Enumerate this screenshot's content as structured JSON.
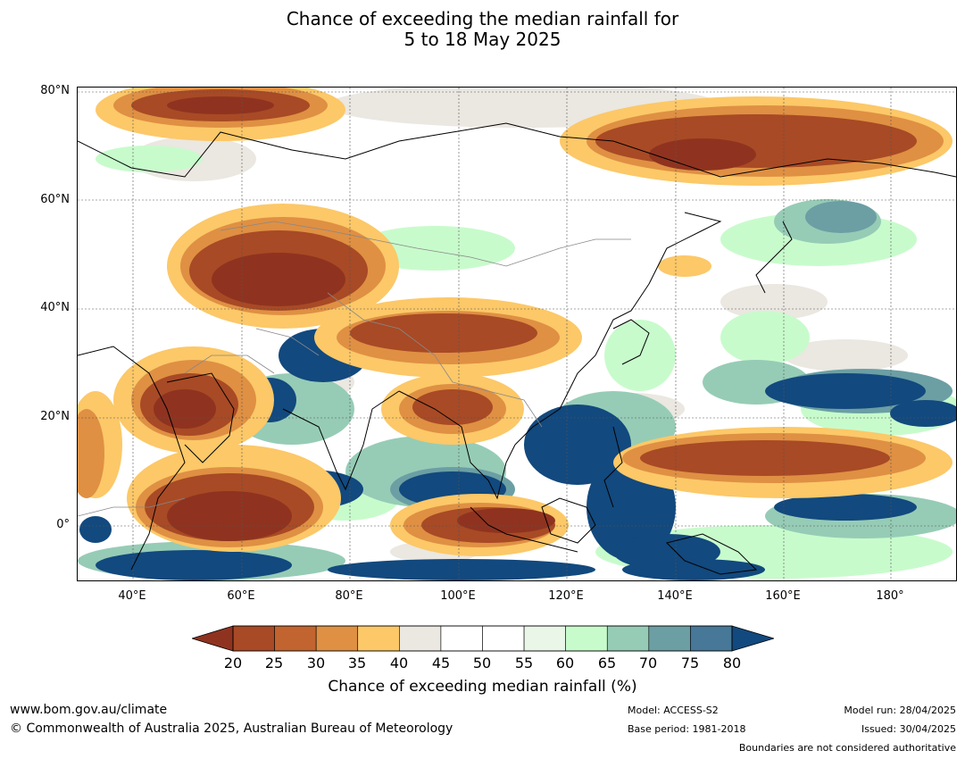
{
  "title": {
    "line1": "Chance of exceeding the median rainfall for",
    "line2": "5 to 18 May 2025"
  },
  "map": {
    "lat_labels": [
      "80°N",
      "60°N",
      "40°N",
      "20°N",
      "0°"
    ],
    "lon_labels": [
      "40°E",
      "60°E",
      "80°E",
      "100°E",
      "120°E",
      "140°E",
      "160°E",
      "180°"
    ],
    "gridlines": true,
    "coastlines": true,
    "country_boundaries": true
  },
  "colorbar": {
    "title": "Chance of exceeding median rainfall (%)",
    "ticks": [
      "20",
      "25",
      "30",
      "35",
      "40",
      "45",
      "50",
      "55",
      "60",
      "65",
      "70",
      "75",
      "80"
    ],
    "colors": [
      "#8f3320",
      "#a84a25",
      "#c2642f",
      "#df9043",
      "#fcc868",
      "#ebe7e1",
      "#ffffff",
      "#ffffff",
      "#e9f6e8",
      "#c8fbcc",
      "#96ccb6",
      "#6b9fa4",
      "#477897",
      "#12497e"
    ],
    "extend": "both"
  },
  "footer": {
    "site": "www.bom.gov.au/climate",
    "copyright": "© Commonwealth of Australia 2025, Australian Bureau of Meteorology",
    "model": "Model: ACCESS-S2",
    "base_period": "Base period: 1981-2018",
    "model_run": "Model run: 28/04/2025",
    "issued": "Issued: 30/04/2025",
    "disclaimer": "Boundaries are not considered authoritative"
  }
}
